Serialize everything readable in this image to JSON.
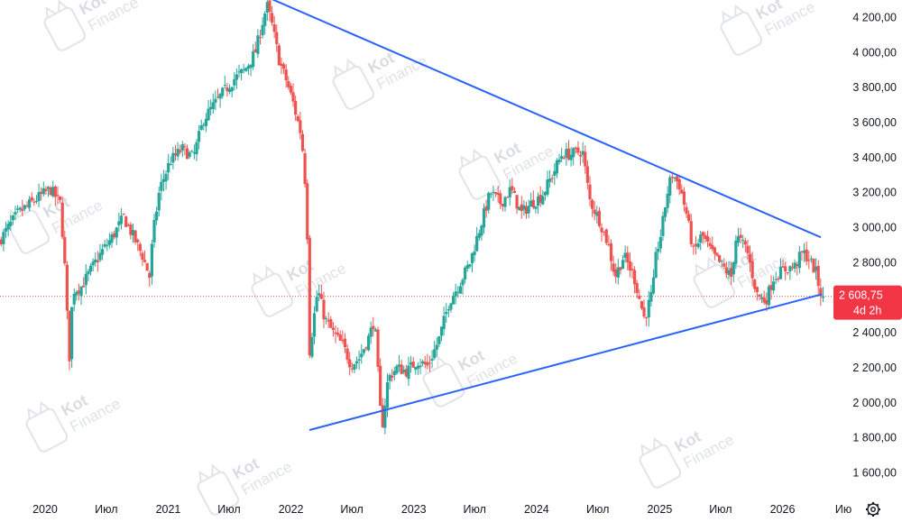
{
  "watermark": {
    "line1": "Kot",
    "line2": "Finance"
  },
  "settings_icon": "gear-icon",
  "colors": {
    "up": "#26a69a",
    "down": "#ef5350",
    "trendline": "#2962ff",
    "price_line": "#ef5350",
    "price_badge": "#f23645"
  },
  "price_badge": {
    "price": "2 608,75",
    "countdown": "4d 2h"
  },
  "chart_data": {
    "type": "candlestick",
    "y_axis": {
      "ylim": [
        1500,
        4300
      ],
      "ticks": [
        {
          "value": 1600,
          "label": "1 600,00"
        },
        {
          "value": 1800,
          "label": "1 800,00"
        },
        {
          "value": 2000,
          "label": "2 000,00"
        },
        {
          "value": 2200,
          "label": "2 200,00"
        },
        {
          "value": 2400,
          "label": "2 400,00"
        },
        {
          "value": 2600,
          "label": "2 600,00"
        },
        {
          "value": 2800,
          "label": "2 800,00"
        },
        {
          "value": 3000,
          "label": "3 000,00"
        },
        {
          "value": 3200,
          "label": "3 200,00"
        },
        {
          "value": 3400,
          "label": "3 400,00"
        },
        {
          "value": 3600,
          "label": "3 600,00"
        },
        {
          "value": 3800,
          "label": "3 800,00"
        },
        {
          "value": 4000,
          "label": "4 000,00"
        },
        {
          "value": 4200,
          "label": "4 200,00"
        }
      ]
    },
    "x_axis": {
      "xlim": [
        "2019-08-20",
        "2026-07-09"
      ],
      "ticks": [
        {
          "date": "2020-01-01",
          "label": "2020"
        },
        {
          "date": "2020-07-01",
          "label": "Июл"
        },
        {
          "date": "2021-01-01",
          "label": "2021"
        },
        {
          "date": "2021-07-01",
          "label": "Июл"
        },
        {
          "date": "2022-01-01",
          "label": "2022"
        },
        {
          "date": "2022-07-01",
          "label": "Июл"
        },
        {
          "date": "2023-01-01",
          "label": "2023"
        },
        {
          "date": "2023-07-01",
          "label": "Июл"
        },
        {
          "date": "2024-01-01",
          "label": "2024"
        },
        {
          "date": "2024-07-01",
          "label": "Июл"
        },
        {
          "date": "2025-01-01",
          "label": "2025"
        },
        {
          "date": "2025-07-01",
          "label": "Июл"
        },
        {
          "date": "2026-01-01",
          "label": "2026"
        },
        {
          "date": "2026-07-01",
          "label": "Ию"
        }
      ]
    },
    "price_path": [
      [
        "2019-08-20",
        2920
      ],
      [
        "2019-10-15",
        3080
      ],
      [
        "2019-12-20",
        3180
      ],
      [
        "2020-01-20",
        3220
      ],
      [
        "2020-02-18",
        3140
      ],
      [
        "2020-03-01",
        2860
      ],
      [
        "2020-03-10",
        2500
      ],
      [
        "2020-03-18",
        2230
      ],
      [
        "2020-03-26",
        2640
      ],
      [
        "2020-04-20",
        2660
      ],
      [
        "2020-05-20",
        2760
      ],
      [
        "2020-06-20",
        2860
      ],
      [
        "2020-07-20",
        2940
      ],
      [
        "2020-08-25",
        3060
      ],
      [
        "2020-09-20",
        2960
      ],
      [
        "2020-10-20",
        2840
      ],
      [
        "2020-11-10",
        2720
      ],
      [
        "2020-11-20",
        2960
      ],
      [
        "2020-12-10",
        3220
      ],
      [
        "2021-01-10",
        3380
      ],
      [
        "2021-02-15",
        3450
      ],
      [
        "2021-03-20",
        3400
      ],
      [
        "2021-04-20",
        3620
      ],
      [
        "2021-05-20",
        3700
      ],
      [
        "2021-06-20",
        3780
      ],
      [
        "2021-07-20",
        3850
      ],
      [
        "2021-08-20",
        3900
      ],
      [
        "2021-09-20",
        4000
      ],
      [
        "2021-10-10",
        4160
      ],
      [
        "2021-10-25",
        4270
      ],
      [
        "2021-11-10",
        4150
      ],
      [
        "2021-12-01",
        3950
      ],
      [
        "2021-12-20",
        3850
      ],
      [
        "2022-01-10",
        3720
      ],
      [
        "2022-02-05",
        3520
      ],
      [
        "2022-02-20",
        3150
      ],
      [
        "2022-03-01",
        2300
      ],
      [
        "2022-03-25",
        2650
      ],
      [
        "2022-04-15",
        2480
      ],
      [
        "2022-05-10",
        2400
      ],
      [
        "2022-06-10",
        2320
      ],
      [
        "2022-07-01",
        2220
      ],
      [
        "2022-07-25",
        2250
      ],
      [
        "2022-08-25",
        2380
      ],
      [
        "2022-09-10",
        2480
      ],
      [
        "2022-09-22",
        2110
      ],
      [
        "2022-10-01",
        1840
      ],
      [
        "2022-10-20",
        2140
      ],
      [
        "2022-11-15",
        2200
      ],
      [
        "2022-12-15",
        2180
      ],
      [
        "2023-01-15",
        2240
      ],
      [
        "2023-02-15",
        2210
      ],
      [
        "2023-03-20",
        2360
      ],
      [
        "2023-04-20",
        2580
      ],
      [
        "2023-05-20",
        2680
      ],
      [
        "2023-06-20",
        2800
      ],
      [
        "2023-07-20",
        3000
      ],
      [
        "2023-08-20",
        3200
      ],
      [
        "2023-09-20",
        3140
      ],
      [
        "2023-10-20",
        3220
      ],
      [
        "2023-11-20",
        3080
      ],
      [
        "2023-12-20",
        3140
      ],
      [
        "2024-01-20",
        3180
      ],
      [
        "2024-02-20",
        3300
      ],
      [
        "2024-03-20",
        3420
      ],
      [
        "2024-04-20",
        3420
      ],
      [
        "2024-05-20",
        3440
      ],
      [
        "2024-06-10",
        3160
      ],
      [
        "2024-07-10",
        3040
      ],
      [
        "2024-08-05",
        2900
      ],
      [
        "2024-08-25",
        2720
      ],
      [
        "2024-09-20",
        2840
      ],
      [
        "2024-10-20",
        2720
      ],
      [
        "2024-11-20",
        2480
      ],
      [
        "2024-12-15",
        2640
      ],
      [
        "2024-12-25",
        2850
      ],
      [
        "2025-01-10",
        2980
      ],
      [
        "2025-01-25",
        3180
      ],
      [
        "2025-02-10",
        3310
      ],
      [
        "2025-03-05",
        3240
      ],
      [
        "2025-03-25",
        3080
      ],
      [
        "2025-04-15",
        2860
      ],
      [
        "2025-05-10",
        2960
      ],
      [
        "2025-06-10",
        2850
      ],
      [
        "2025-07-10",
        2780
      ],
      [
        "2025-08-05",
        2720
      ],
      [
        "2025-08-20",
        2950
      ],
      [
        "2025-09-20",
        2880
      ],
      [
        "2025-10-20",
        2620
      ],
      [
        "2025-11-15",
        2580
      ],
      [
        "2025-12-10",
        2720
      ],
      [
        "2026-01-10",
        2760
      ],
      [
        "2026-02-10",
        2780
      ],
      [
        "2026-03-05",
        2860
      ],
      [
        "2026-03-25",
        2820
      ],
      [
        "2026-04-15",
        2740
      ],
      [
        "2026-04-28",
        2608.75
      ]
    ],
    "trendlines": [
      {
        "name": "upper",
        "points": [
          [
            "2021-10-12",
            4325
          ],
          [
            "2026-04-25",
            2945
          ]
        ]
      },
      {
        "name": "lower",
        "points": [
          [
            "2022-02-25",
            1845
          ],
          [
            "2026-04-28",
            2620
          ]
        ]
      }
    ],
    "last_price": 2608.75,
    "grid": false
  }
}
